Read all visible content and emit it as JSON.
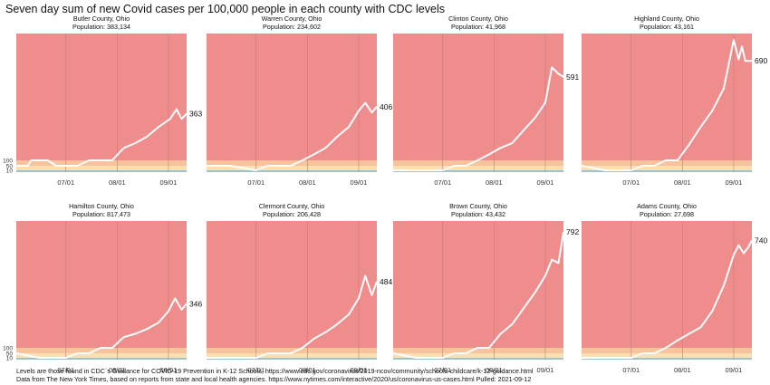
{
  "title": "Seven day sum of new Covid cases per 100,000 people in each county with CDC levels",
  "footer": {
    "line1": "Levels are those found in CDC`s Guidance for COVID-19 Prevention in K-12 Schools, https://www.cdc.gov/coronavirus/2019-ncov/community/schools-childcare/k-12-guidance.html",
    "line2": "Data from The New York Times, based on reports from state and local health agencies. https://www.nytimes.com/interactive/2020/us/coronavirus-us-cases.html Pulled: 2021-09-12"
  },
  "colors": {
    "high": "#ef8c8c",
    "substantial": "#f6c39c",
    "moderate": "#fae0b0",
    "low": "#9fc3cc",
    "line": "#ffffff",
    "grid": "#c97b7b"
  },
  "chart_data": {
    "type": "line",
    "y_reference_ticks": [
      10,
      50,
      100
    ],
    "x_tick_labels": [
      "07/01",
      "08/01",
      "09/01"
    ],
    "x_range": [
      "2021-06-01",
      "2021-09-12"
    ],
    "ylim": [
      0,
      860
    ],
    "cdc_levels": [
      {
        "level": "low",
        "from": 0,
        "to": 10
      },
      {
        "level": "moderate",
        "from": 10,
        "to": 50
      },
      {
        "level": "substantial",
        "from": 50,
        "to": 100
      },
      {
        "level": "high",
        "from": 100,
        "to": 860
      }
    ],
    "panels": [
      {
        "county": "Butler County, Ohio",
        "population": "Population: 383,134",
        "last_value": "363",
        "x": [
          "2021-06-01",
          "2021-06-08",
          "2021-06-10",
          "2021-06-12",
          "2021-06-20",
          "2021-06-25",
          "2021-07-01",
          "2021-07-08",
          "2021-07-15",
          "2021-07-22",
          "2021-07-29",
          "2021-08-05",
          "2021-08-12",
          "2021-08-19",
          "2021-08-26",
          "2021-09-02",
          "2021-09-06",
          "2021-09-09",
          "2021-09-12"
        ],
        "y": [
          30,
          25,
          100,
          100,
          100,
          15,
          25,
          40,
          55,
          70,
          100,
          150,
          180,
          220,
          280,
          330,
          390,
          330,
          363
        ]
      },
      {
        "county": "Warren County, Ohio",
        "population": "Population: 234,602",
        "last_value": "406",
        "x": [
          "2021-06-01",
          "2021-06-15",
          "2021-07-01",
          "2021-07-08",
          "2021-07-15",
          "2021-07-22",
          "2021-07-29",
          "2021-08-05",
          "2021-08-12",
          "2021-08-19",
          "2021-08-26",
          "2021-09-01",
          "2021-09-05",
          "2021-09-09",
          "2021-09-12"
        ],
        "y": [
          20,
          15,
          10,
          20,
          30,
          45,
          70,
          110,
          150,
          220,
          280,
          380,
          430,
          370,
          406
        ]
      },
      {
        "county": "Clinton County, Ohio",
        "population": "Population:  41,968",
        "last_value": "591",
        "x": [
          "2021-06-01",
          "2021-06-15",
          "2021-07-01",
          "2021-07-08",
          "2021-07-15",
          "2021-07-22",
          "2021-07-29",
          "2021-08-05",
          "2021-08-12",
          "2021-08-19",
          "2021-08-26",
          "2021-09-01",
          "2021-09-05",
          "2021-09-09",
          "2021-09-12"
        ],
        "y": [
          10,
          5,
          0,
          20,
          35,
          60,
          110,
          150,
          180,
          260,
          340,
          430,
          650,
          610,
          591
        ]
      },
      {
        "county": "Highland County, Ohio",
        "population": "Population:  43,161",
        "last_value": "690",
        "x": [
          "2021-06-01",
          "2021-06-15",
          "2021-07-01",
          "2021-07-08",
          "2021-07-15",
          "2021-07-22",
          "2021-07-29",
          "2021-08-05",
          "2021-08-12",
          "2021-08-19",
          "2021-08-26",
          "2021-09-01",
          "2021-09-04",
          "2021-09-06",
          "2021-09-08",
          "2021-09-10",
          "2021-09-12"
        ],
        "y": [
          15,
          10,
          5,
          20,
          35,
          60,
          100,
          170,
          280,
          380,
          520,
          820,
          700,
          780,
          690,
          690,
          690
        ]
      },
      {
        "county": "Hamilton County, Ohio",
        "population": "Population: 817,473",
        "last_value": "346",
        "x": [
          "2021-06-01",
          "2021-06-15",
          "2021-07-01",
          "2021-07-08",
          "2021-07-15",
          "2021-07-22",
          "2021-07-29",
          "2021-08-05",
          "2021-08-12",
          "2021-08-19",
          "2021-08-26",
          "2021-09-01",
          "2021-09-05",
          "2021-09-09",
          "2021-09-12"
        ],
        "y": [
          15,
          10,
          10,
          20,
          40,
          60,
          100,
          140,
          160,
          190,
          230,
          300,
          380,
          310,
          346
        ]
      },
      {
        "county": "Clermont County, Ohio",
        "population": "Population: 206,428",
        "last_value": "484",
        "x": [
          "2021-06-01",
          "2021-06-15",
          "2021-07-01",
          "2021-07-08",
          "2021-07-15",
          "2021-07-22",
          "2021-07-29",
          "2021-08-05",
          "2021-08-12",
          "2021-08-19",
          "2021-08-26",
          "2021-09-01",
          "2021-09-05",
          "2021-09-09",
          "2021-09-12"
        ],
        "y": [
          10,
          5,
          5,
          15,
          30,
          50,
          90,
          130,
          170,
          220,
          280,
          380,
          520,
          400,
          484
        ]
      },
      {
        "county": "Brown County, Ohio",
        "population": "Population:  43,432",
        "last_value": "792",
        "x": [
          "2021-06-01",
          "2021-06-15",
          "2021-07-01",
          "2021-07-08",
          "2021-07-15",
          "2021-07-22",
          "2021-07-29",
          "2021-08-05",
          "2021-08-12",
          "2021-08-19",
          "2021-08-26",
          "2021-09-01",
          "2021-09-05",
          "2021-09-09",
          "2021-09-12"
        ],
        "y": [
          15,
          10,
          0,
          15,
          30,
          60,
          100,
          160,
          220,
          320,
          420,
          520,
          620,
          600,
          792
        ]
      },
      {
        "county": "Adams County, Ohio",
        "population": "Population:  27,698",
        "last_value": "740",
        "x": [
          "2021-06-01",
          "2021-06-15",
          "2021-07-01",
          "2021-07-08",
          "2021-07-15",
          "2021-07-22",
          "2021-07-29",
          "2021-08-05",
          "2021-08-12",
          "2021-08-19",
          "2021-08-26",
          "2021-09-01",
          "2021-09-04",
          "2021-09-07",
          "2021-09-10",
          "2021-09-12"
        ],
        "y": [
          10,
          10,
          5,
          15,
          30,
          60,
          120,
          160,
          200,
          300,
          460,
          650,
          710,
          660,
          700,
          740
        ]
      }
    ]
  }
}
